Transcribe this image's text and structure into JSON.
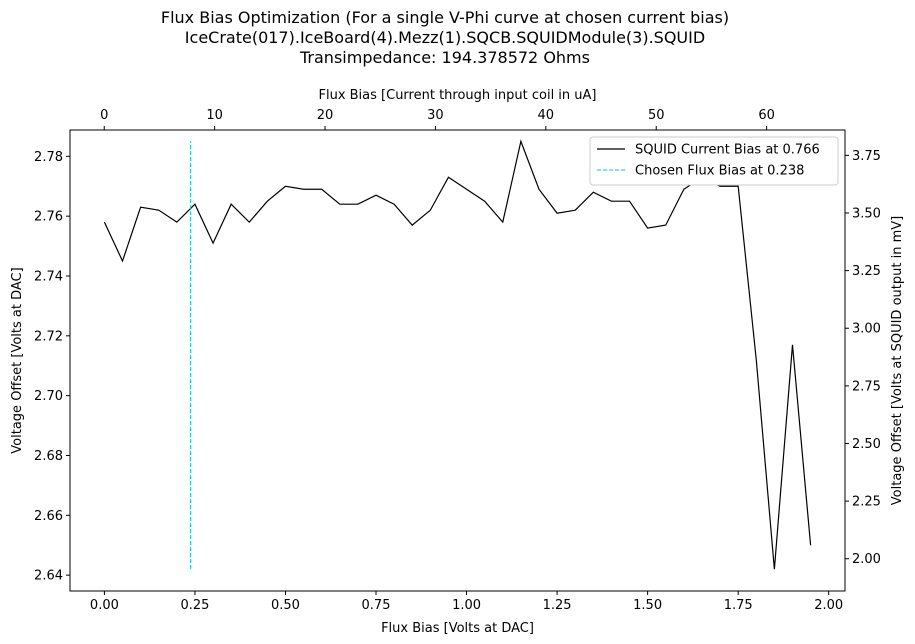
{
  "title_lines": [
    "Flux Bias Optimization (For a single V-Phi curve at chosen current bias)",
    "IceCrate(017).IceBoard(4).Mezz(1).SQCB.SQUIDModule(3).SQUID",
    "Transimpedance: 194.378572 Ohms"
  ],
  "chart_data": {
    "type": "line",
    "xlabel": "Flux Bias [Volts at DAC]",
    "ylabel": "Voltage Offset [Volts at DAC]",
    "top_xlabel": "Flux Bias [Current through input coil in uA]",
    "right_ylabel": "Voltage Offset [Volts at SQUID output in mV]",
    "xlim": [
      -0.095,
      2.045
    ],
    "ylim": [
      2.6347,
      2.7888
    ],
    "xticks": [
      0.0,
      0.25,
      0.5,
      0.75,
      1.0,
      1.25,
      1.5,
      1.75,
      2.0
    ],
    "xtick_labels": [
      "0.00",
      "0.25",
      "0.50",
      "0.75",
      "1.00",
      "1.25",
      "1.50",
      "1.75",
      "2.00"
    ],
    "yticks": [
      2.64,
      2.66,
      2.68,
      2.7,
      2.72,
      2.74,
      2.76,
      2.78
    ],
    "ytick_labels": [
      "2.64",
      "2.66",
      "2.68",
      "2.70",
      "2.72",
      "2.74",
      "2.76",
      "2.78"
    ],
    "top_xticks": [
      0,
      10,
      20,
      30,
      40,
      50,
      60
    ],
    "top_xtick_labels": [
      "0",
      "10",
      "20",
      "30",
      "40",
      "50",
      "60"
    ],
    "top_xlim": [
      -3.1,
      67.1
    ],
    "right_yticks": [
      2.0,
      2.25,
      2.5,
      2.75,
      3.0,
      3.25,
      3.5,
      3.75
    ],
    "right_ytick_labels": [
      "2.00",
      "2.25",
      "2.50",
      "2.75",
      "3.00",
      "3.25",
      "3.50",
      "3.75"
    ],
    "right_ylim": [
      1.86,
      3.86
    ],
    "grid": false,
    "legend_position": "top-right",
    "series": [
      {
        "name": "SQUID Current Bias at 0.766",
        "color": "#000000",
        "style": "solid",
        "x": [
          0.0,
          0.05,
          0.1,
          0.15,
          0.2,
          0.25,
          0.3,
          0.35,
          0.4,
          0.45,
          0.5,
          0.55,
          0.6,
          0.65,
          0.7,
          0.75,
          0.8,
          0.85,
          0.9,
          0.95,
          1.0,
          1.05,
          1.1,
          1.15,
          1.2,
          1.25,
          1.3,
          1.35,
          1.4,
          1.45,
          1.5,
          1.55,
          1.6,
          1.65,
          1.7,
          1.75,
          1.8,
          1.85,
          1.9,
          1.95
        ],
        "y": [
          2.758,
          2.745,
          2.763,
          2.762,
          2.758,
          2.764,
          2.751,
          2.764,
          2.758,
          2.765,
          2.77,
          2.769,
          2.769,
          2.764,
          2.764,
          2.767,
          2.764,
          2.757,
          2.762,
          2.773,
          2.769,
          2.765,
          2.758,
          2.785,
          2.769,
          2.761,
          2.762,
          2.768,
          2.765,
          2.765,
          2.756,
          2.757,
          2.769,
          2.773,
          2.77,
          2.77,
          2.712,
          2.642,
          2.717,
          2.65
        ]
      },
      {
        "name": "Chosen Flux Bias at 0.238",
        "color": "#17becf",
        "style": "dashed",
        "x": [
          0.238,
          0.238
        ],
        "y": [
          2.642,
          2.785
        ]
      }
    ]
  }
}
